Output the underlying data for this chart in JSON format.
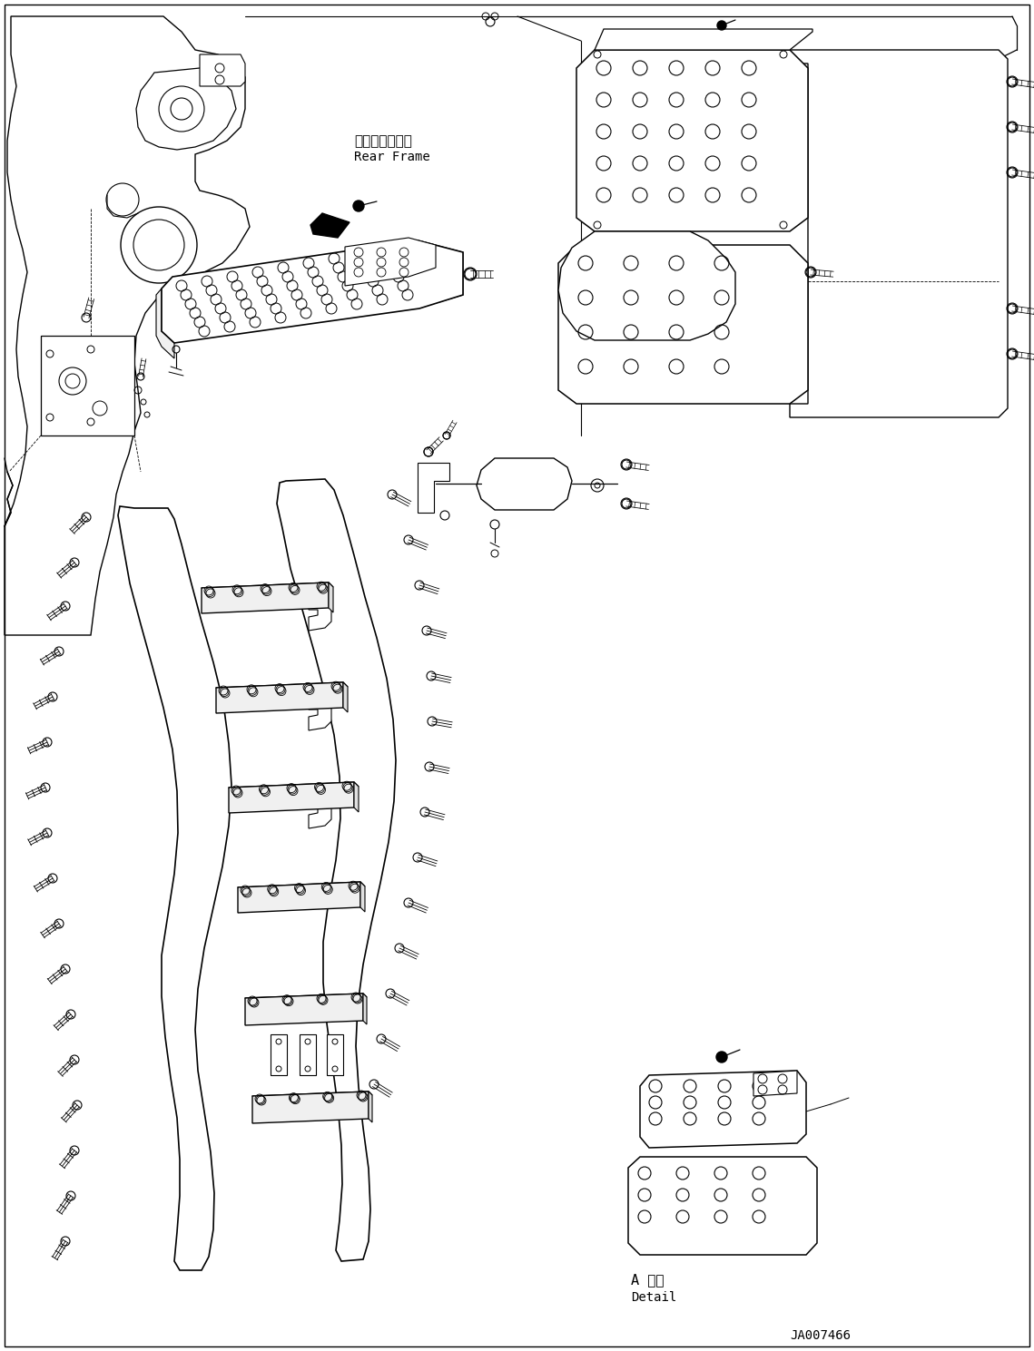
{
  "bg_color": "#ffffff",
  "line_color": "#000000",
  "figure_width": 11.39,
  "figure_height": 14.89,
  "dpi": 100,
  "text_rear_frame_jp": "リヤーフレーム",
  "text_rear_frame_en": "Rear Frame",
  "text_detail_jp": "A 詳細",
  "text_detail_en": "Detail",
  "text_doc_id": "JA007466"
}
